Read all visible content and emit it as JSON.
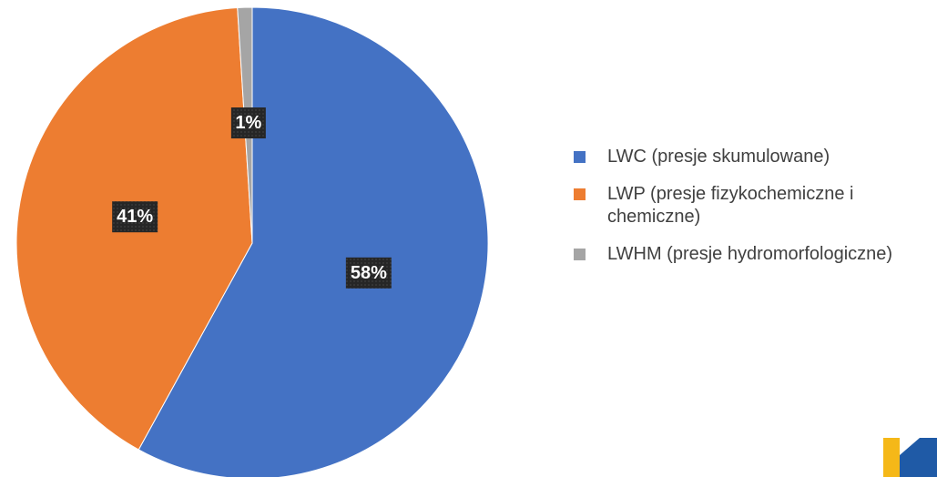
{
  "chart_data": {
    "type": "pie",
    "categories": [
      "LWC (presje skumulowane)",
      "LWP (presje fizykochemiczne i chemiczne)",
      "LWHM (presje hydromorfologiczne)"
    ],
    "values": [
      58,
      41,
      1
    ],
    "value_labels": [
      "58%",
      "41%",
      "1%"
    ],
    "colors": [
      "#4472c4",
      "#ed7d31",
      "#a5a5a5"
    ],
    "legend": "right"
  }
}
